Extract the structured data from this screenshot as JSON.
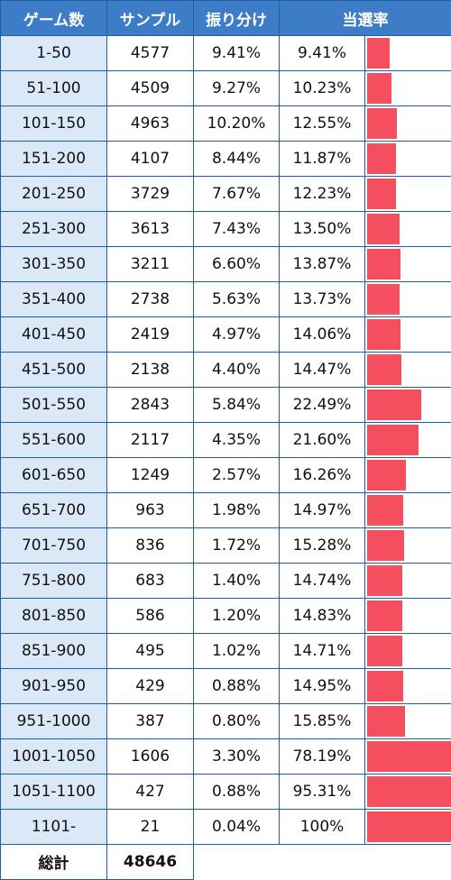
{
  "table": {
    "headers": [
      "ゲーム数",
      "サンプル",
      "振り分け",
      "当選率"
    ],
    "rows": [
      {
        "range": "1-50",
        "samples": "4577",
        "share": "9.41%",
        "win_rate": "9.41%",
        "bar": 9.41
      },
      {
        "range": "51-100",
        "samples": "4509",
        "share": "9.27%",
        "win_rate": "10.23%",
        "bar": 10.23
      },
      {
        "range": "101-150",
        "samples": "4963",
        "share": "10.20%",
        "win_rate": "12.55%",
        "bar": 12.55
      },
      {
        "range": "151-200",
        "samples": "4107",
        "share": "8.44%",
        "win_rate": "11.87%",
        "bar": 11.87
      },
      {
        "range": "201-250",
        "samples": "3729",
        "share": "7.67%",
        "win_rate": "12.23%",
        "bar": 12.23
      },
      {
        "range": "251-300",
        "samples": "3613",
        "share": "7.43%",
        "win_rate": "13.50%",
        "bar": 13.5
      },
      {
        "range": "301-350",
        "samples": "3211",
        "share": "6.60%",
        "win_rate": "13.87%",
        "bar": 13.87
      },
      {
        "range": "351-400",
        "samples": "2738",
        "share": "5.63%",
        "win_rate": "13.73%",
        "bar": 13.73
      },
      {
        "range": "401-450",
        "samples": "2419",
        "share": "4.97%",
        "win_rate": "14.06%",
        "bar": 14.06
      },
      {
        "range": "451-500",
        "samples": "2138",
        "share": "4.40%",
        "win_rate": "14.47%",
        "bar": 14.47
      },
      {
        "range": "501-550",
        "samples": "2843",
        "share": "5.84%",
        "win_rate": "22.49%",
        "bar": 22.49
      },
      {
        "range": "551-600",
        "samples": "2117",
        "share": "4.35%",
        "win_rate": "21.60%",
        "bar": 21.6
      },
      {
        "range": "601-650",
        "samples": "1249",
        "share": "2.57%",
        "win_rate": "16.26%",
        "bar": 16.26
      },
      {
        "range": "651-700",
        "samples": "963",
        "share": "1.98%",
        "win_rate": "14.97%",
        "bar": 14.97
      },
      {
        "range": "701-750",
        "samples": "836",
        "share": "1.72%",
        "win_rate": "15.28%",
        "bar": 15.28
      },
      {
        "range": "751-800",
        "samples": "683",
        "share": "1.40%",
        "win_rate": "14.74%",
        "bar": 14.74
      },
      {
        "range": "801-850",
        "samples": "586",
        "share": "1.20%",
        "win_rate": "14.83%",
        "bar": 14.83
      },
      {
        "range": "851-900",
        "samples": "495",
        "share": "1.02%",
        "win_rate": "14.71%",
        "bar": 14.71
      },
      {
        "range": "901-950",
        "samples": "429",
        "share": "0.88%",
        "win_rate": "14.95%",
        "bar": 14.95
      },
      {
        "range": "951-1000",
        "samples": "387",
        "share": "0.80%",
        "win_rate": "15.85%",
        "bar": 15.85
      },
      {
        "range": "1001-1050",
        "samples": "1606",
        "share": "3.30%",
        "win_rate": "78.19%",
        "bar": 78.19
      },
      {
        "range": "1051-1100",
        "samples": "427",
        "share": "0.88%",
        "win_rate": "95.31%",
        "bar": 95.31
      },
      {
        "range": "1101-",
        "samples": "21",
        "share": "0.04%",
        "win_rate": "100%",
        "bar": 100
      }
    ],
    "total": {
      "label": "総計",
      "samples": "48646"
    }
  },
  "chart_data": {
    "type": "table",
    "columns": [
      "ゲーム数",
      "サンプル",
      "振り分け",
      "当選率"
    ],
    "bar_column": "当選率",
    "bar_scale_max": 35,
    "categories": [
      "1-50",
      "51-100",
      "101-150",
      "151-200",
      "201-250",
      "251-300",
      "301-350",
      "351-400",
      "401-450",
      "451-500",
      "501-550",
      "551-600",
      "601-650",
      "651-700",
      "701-750",
      "751-800",
      "801-850",
      "851-900",
      "901-950",
      "951-1000",
      "1001-1050",
      "1051-1100",
      "1101-"
    ],
    "samples": [
      4577,
      4509,
      4963,
      4107,
      3729,
      3613,
      3211,
      2738,
      2419,
      2138,
      2843,
      2117,
      1249,
      963,
      836,
      683,
      586,
      495,
      429,
      387,
      1606,
      427,
      21
    ],
    "share_pct": [
      9.41,
      9.27,
      10.2,
      8.44,
      7.67,
      7.43,
      6.6,
      5.63,
      4.97,
      4.4,
      5.84,
      4.35,
      2.57,
      1.98,
      1.72,
      1.4,
      1.2,
      1.02,
      0.88,
      0.8,
      3.3,
      0.88,
      0.04
    ],
    "win_rate_pct": [
      9.41,
      10.23,
      12.55,
      11.87,
      12.23,
      13.5,
      13.87,
      13.73,
      14.06,
      14.47,
      22.49,
      21.6,
      16.26,
      14.97,
      15.28,
      14.74,
      14.83,
      14.71,
      14.95,
      15.85,
      78.19,
      95.31,
      100
    ],
    "total_samples": 48646
  },
  "colors": {
    "header": "#3d7cc6",
    "range_bg": "#dbe8f7",
    "bar": "#f44e5f",
    "border": "#1f5fa6"
  }
}
